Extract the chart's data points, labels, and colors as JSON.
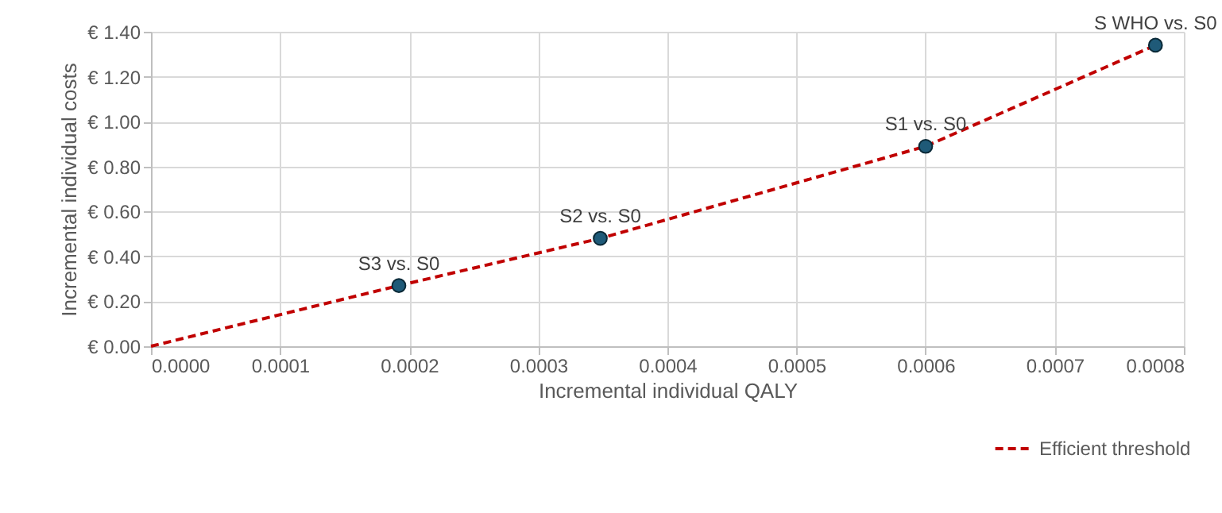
{
  "chart_data": {
    "type": "scatter",
    "xlabel": "Incremental individual QALY",
    "ylabel": "Incremental individual costs",
    "xlim": [
      0,
      0.0008
    ],
    "ylim": [
      0,
      1.4
    ],
    "xticks": [
      {
        "value": 0,
        "label": "0.0000"
      },
      {
        "value": 0.0001,
        "label": "0.0001"
      },
      {
        "value": 0.0002,
        "label": "0.0002"
      },
      {
        "value": 0.0003,
        "label": "0.0003"
      },
      {
        "value": 0.0004,
        "label": "0.0004"
      },
      {
        "value": 0.0005,
        "label": "0.0005"
      },
      {
        "value": 0.0006,
        "label": "0.0006"
      },
      {
        "value": 0.0007,
        "label": "0.0007"
      },
      {
        "value": 0.0008,
        "label": "0.0008"
      }
    ],
    "yticks": [
      {
        "value": 0,
        "label": "€ 0.00"
      },
      {
        "value": 0.2,
        "label": "€ 0.20"
      },
      {
        "value": 0.4,
        "label": "€ 0.40"
      },
      {
        "value": 0.6,
        "label": "€ 0.60"
      },
      {
        "value": 0.8,
        "label": "€ 0.80"
      },
      {
        "value": 1,
        "label": "€ 1.00"
      },
      {
        "value": 1.2,
        "label": "€ 1.20"
      },
      {
        "value": 1.4,
        "label": "€ 1.40"
      }
    ],
    "grid": true,
    "legend": "bottom right",
    "series": [
      {
        "name": "Efficient threshold",
        "type": "line",
        "line_style": "dashed",
        "marker": "none",
        "color": "#c00000",
        "x": [
          0,
          0.000192,
          0.000348,
          0.0006,
          0.000778
        ],
        "values": [
          0,
          0.27,
          0.48,
          0.89,
          1.34
        ]
      },
      {
        "marker": "circle",
        "color": "#1f5a78",
        "x": [
          0.000192,
          0.000348,
          0.0006,
          0.000778
        ],
        "values": [
          0.27,
          0.48,
          0.89,
          1.34
        ]
      }
    ],
    "annotations": [
      {
        "text": "S3 vs. S0",
        "x": 0.000192,
        "y": 0.27
      },
      {
        "text": "S2 vs. S0",
        "x": 0.000348,
        "y": 0.48
      },
      {
        "text": "S1 vs. S0",
        "x": 0.0006,
        "y": 0.89
      },
      {
        "text": "S WHO vs. S0",
        "x": 0.000778,
        "y": 1.34
      }
    ]
  }
}
